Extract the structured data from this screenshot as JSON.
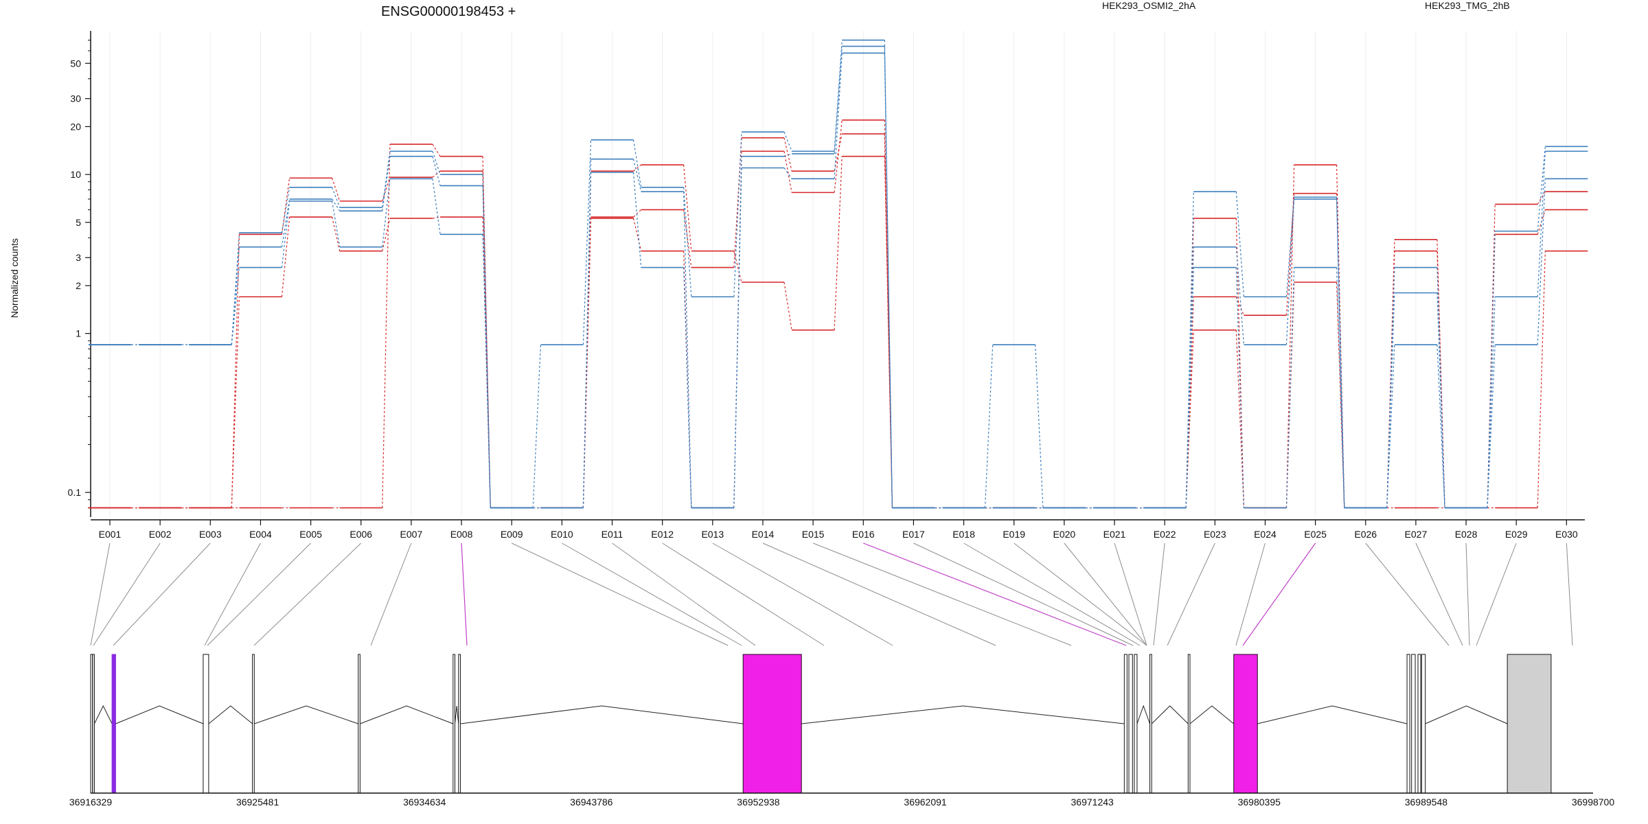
{
  "chart_data": {
    "type": "line",
    "title": "ENSG00000198453 +",
    "ylabel": "Normalized counts",
    "yscale": "log",
    "ylim": [
      0.07,
      80
    ],
    "yticks": [
      "0.1",
      "1",
      "2",
      "3",
      "5",
      "10",
      "20",
      "30",
      "50"
    ],
    "categories": [
      "E001",
      "E002",
      "E003",
      "E004",
      "E005",
      "E006",
      "E007",
      "E008",
      "E009",
      "E010",
      "E011",
      "E012",
      "E013",
      "E014",
      "E015",
      "E016",
      "E017",
      "E018",
      "E019",
      "E020",
      "E021",
      "E022",
      "E023",
      "E024",
      "E025",
      "E026",
      "E027",
      "E028",
      "E029",
      "E030"
    ],
    "legend": [
      {
        "label": "HEK293_OSMI2_2hA",
        "color": "#d62728"
      },
      {
        "label": "HEK293_TMG_2hB",
        "color": "#3d7fbe"
      }
    ],
    "series": [
      {
        "group": 0,
        "values": [
          0.08,
          0.08,
          0.08,
          0.08,
          0.08,
          0.08,
          15.5,
          13,
          0.08,
          0.08,
          10.5,
          11.5,
          3.3,
          2.1,
          1.05,
          13,
          0.08,
          0.08,
          0.08,
          0.08,
          0.08,
          0.08,
          5.3,
          0.08,
          11.5,
          0.08,
          3.9,
          0.08,
          6.5,
          7.8
        ]
      },
      {
        "group": 0,
        "values": [
          0.08,
          0.08,
          0.08,
          4.2,
          9.5,
          6.8,
          9.6,
          10.5,
          0.08,
          0.08,
          5.4,
          6.0,
          2.6,
          17,
          10.5,
          18,
          0.08,
          0.08,
          0.08,
          0.08,
          0.08,
          0.08,
          1.7,
          1.3,
          7.6,
          0.08,
          3.3,
          0.08,
          4.2,
          6.0
        ]
      },
      {
        "group": 0,
        "values": [
          0.08,
          0.08,
          0.08,
          1.7,
          5.4,
          3.3,
          5.3,
          5.4,
          0.08,
          0.08,
          5.3,
          3.3,
          0.08,
          14,
          7.7,
          22,
          0.08,
          0.08,
          0.08,
          0.08,
          0.08,
          0.08,
          1.05,
          0.08,
          2.1,
          0.08,
          0.08,
          0.08,
          0.08,
          3.3
        ]
      },
      {
        "group": 1,
        "values": [
          0.85,
          0.85,
          0.85,
          4.3,
          8.3,
          6.2,
          14,
          10,
          0.08,
          0.85,
          16.5,
          8.3,
          1.7,
          18.5,
          14,
          70,
          0.08,
          0.08,
          0.85,
          0.08,
          0.08,
          0.08,
          7.8,
          1.7,
          7.2,
          0.08,
          2.6,
          0.08,
          4.4,
          15
        ]
      },
      {
        "group": 1,
        "values": [
          0.85,
          0.85,
          0.85,
          3.5,
          7.0,
          5.9,
          13,
          8.5,
          0.08,
          0.08,
          12.5,
          7.8,
          0.08,
          13,
          13.5,
          64,
          0.08,
          0.08,
          0.08,
          0.08,
          0.08,
          0.08,
          3.5,
          0.85,
          7.0,
          0.08,
          1.8,
          0.08,
          1.7,
          14
        ]
      },
      {
        "group": 1,
        "values": [
          0.85,
          0.85,
          0.85,
          2.6,
          6.8,
          3.5,
          9.4,
          4.2,
          0.08,
          0.08,
          10.3,
          2.6,
          0.08,
          11,
          9.4,
          58,
          0.08,
          0.08,
          0.08,
          0.08,
          0.08,
          0.08,
          2.6,
          0.08,
          2.6,
          0.08,
          0.85,
          0.08,
          0.85,
          9.4
        ]
      }
    ],
    "gene_model": {
      "coords": [
        "36916329",
        "36925481",
        "36934634",
        "36943786",
        "36952938",
        "36962091",
        "36971243",
        "36980395",
        "36989548",
        "36998700"
      ],
      "highlight_color": "#f020e8"
    }
  }
}
